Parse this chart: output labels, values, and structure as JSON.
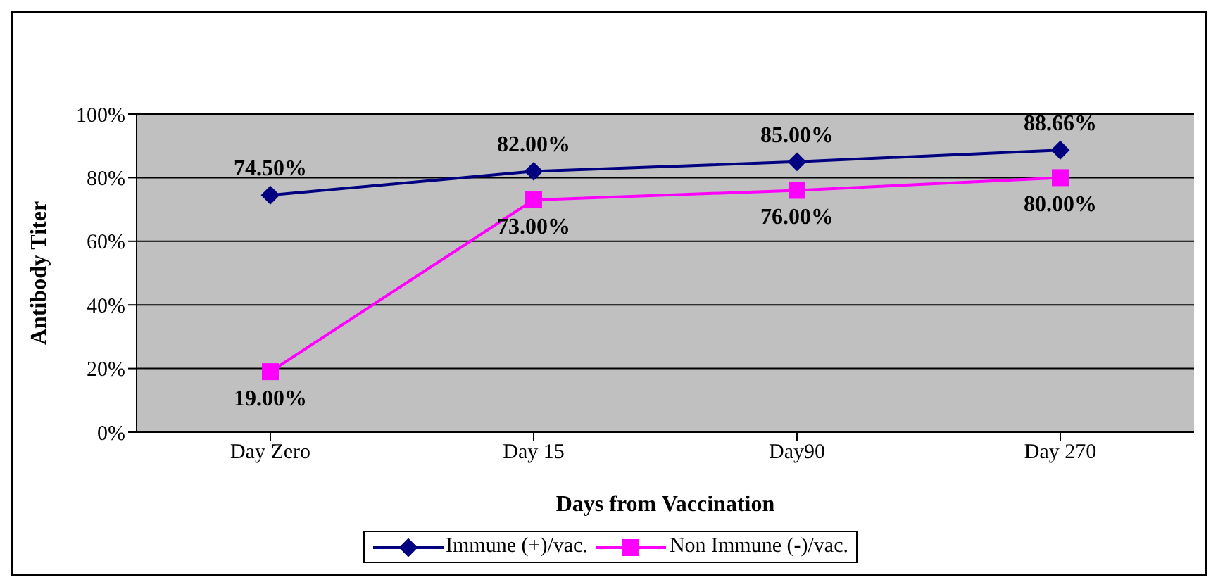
{
  "chart_data": {
    "type": "line",
    "xlabel": "Days from Vaccination",
    "ylabel": "Antibody Titer",
    "categories": [
      "Day Zero",
      "Day 15",
      "Day90",
      "Day 270"
    ],
    "series": [
      {
        "name": "Immune (+)/vac.",
        "color": "#000080",
        "marker": "diamond",
        "values": [
          74.5,
          82,
          85,
          88.66
        ],
        "value_labels": [
          "74.50%",
          "82.00%",
          "85.00%",
          "88.66%"
        ]
      },
      {
        "name": "Non Immune (-)/vac.",
        "color": "#ff00ff",
        "marker": "square",
        "values": [
          19,
          73,
          76,
          80
        ],
        "value_labels": [
          "19.00%",
          "73.00%",
          "76.00%",
          "80.00%"
        ]
      }
    ],
    "ylim": [
      0,
      100
    ],
    "yticks": [
      {
        "value": 0,
        "label": "0%"
      },
      {
        "value": 20,
        "label": "20%"
      },
      {
        "value": 40,
        "label": "40%"
      },
      {
        "value": 60,
        "label": "60%"
      },
      {
        "value": 80,
        "label": "80%"
      },
      {
        "value": 100,
        "label": "100%"
      }
    ],
    "grid": "y",
    "legend": "bottom",
    "line_style": "solid"
  }
}
